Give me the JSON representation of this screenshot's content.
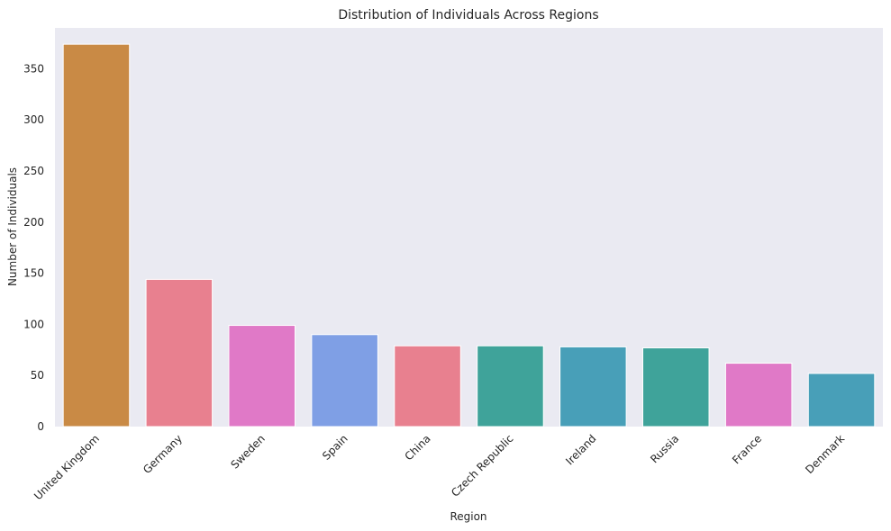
{
  "chart_data": {
    "type": "bar",
    "title": "Distribution of Individuals Across Regions",
    "xlabel": "Region",
    "ylabel": "Number of Individuals",
    "ylim": [
      0,
      390
    ],
    "yticks": [
      0,
      50,
      100,
      150,
      200,
      250,
      300,
      350
    ],
    "ytick_labels": [
      "0",
      "50",
      "100",
      "150",
      "200",
      "250",
      "300",
      "350"
    ],
    "grid": false,
    "categories": [
      "United Kingdom",
      "Germany",
      "Sweden",
      "Spain",
      "China",
      "Czech Republic",
      "Ireland",
      "Russia",
      "France",
      "Denmark"
    ],
    "values": [
      374,
      144,
      99,
      90,
      79,
      79,
      78,
      77,
      62,
      52
    ],
    "colors": [
      "#c98a45",
      "#e8808f",
      "#e079c7",
      "#7f9fe5",
      "#e8808f",
      "#3fa39a",
      "#489fb8",
      "#3fa39a",
      "#e079c7",
      "#489fb8"
    ],
    "plot_background": "#eaeaf2"
  }
}
